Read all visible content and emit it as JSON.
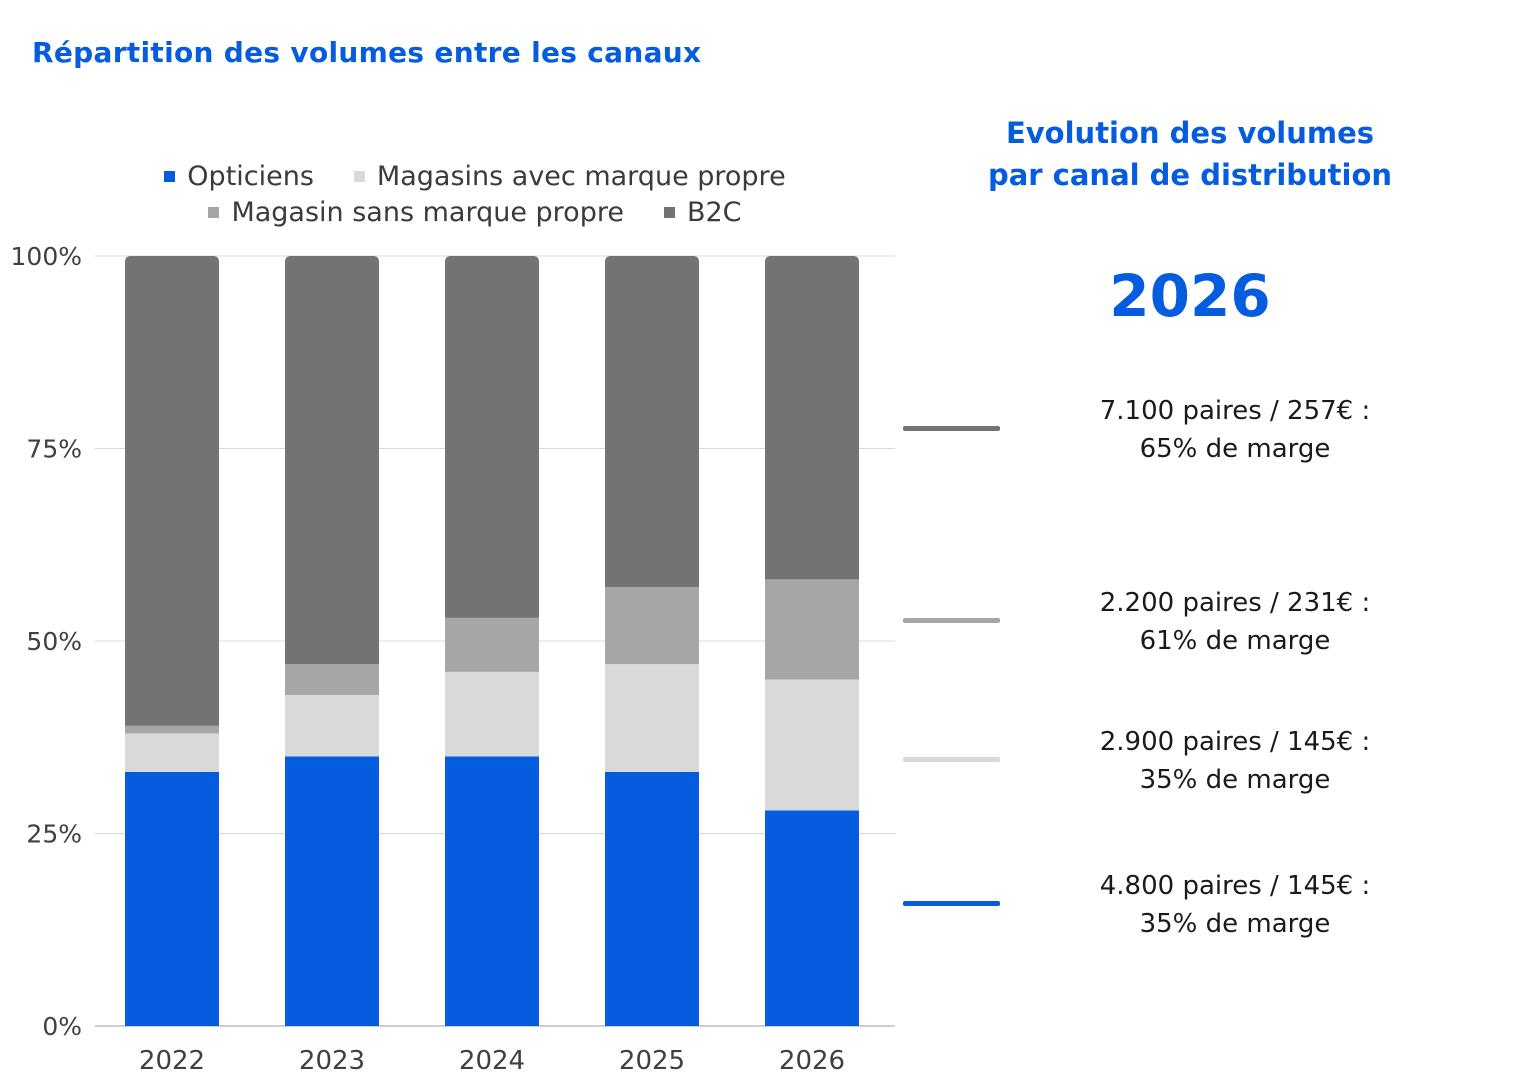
{
  "header": {
    "title": "Répartition des volumes entre les canaux"
  },
  "chart_data": {
    "type": "bar",
    "stacked": true,
    "categories": [
      "2022",
      "2023",
      "2024",
      "2025",
      "2026"
    ],
    "series": [
      {
        "name": "Opticiens",
        "color": "#055cde",
        "values": [
          0.33,
          0.35,
          0.35,
          0.33,
          0.28
        ]
      },
      {
        "name": "Magasins avec marque propre",
        "color": "#d9d9d9",
        "values": [
          0.05,
          0.08,
          0.11,
          0.14,
          0.17
        ]
      },
      {
        "name": "Magasin sans marque propre",
        "color": "#a6a6a6",
        "values": [
          0.01,
          0.04,
          0.07,
          0.1,
          0.13
        ]
      },
      {
        "name": "B2C",
        "color": "#737373",
        "values": [
          0.61,
          0.53,
          0.47,
          0.43,
          0.42
        ]
      }
    ],
    "ylim": [
      0,
      1
    ],
    "yticks": [
      "0%",
      "25%",
      "50%",
      "75%",
      "100%"
    ],
    "grid": true,
    "legend_position": "top"
  },
  "side_panel": {
    "title_line1": "Evolution des volumes",
    "title_line2": "par canal de distribution",
    "year": "2026",
    "items": [
      {
        "line1": "7.100 paires / 257€ :",
        "line2": "65% de marge",
        "color": "#737373"
      },
      {
        "line1": "2.200 paires / 231€ :",
        "line2": "61% de marge",
        "color": "#a6a6a6"
      },
      {
        "line1": "2.900 paires / 145€ :",
        "line2": "35% de marge",
        "color": "#d9d9d9"
      },
      {
        "line1": "4.800 paires / 145€ :",
        "line2": "35% de marge",
        "color": "#055cde"
      }
    ]
  }
}
